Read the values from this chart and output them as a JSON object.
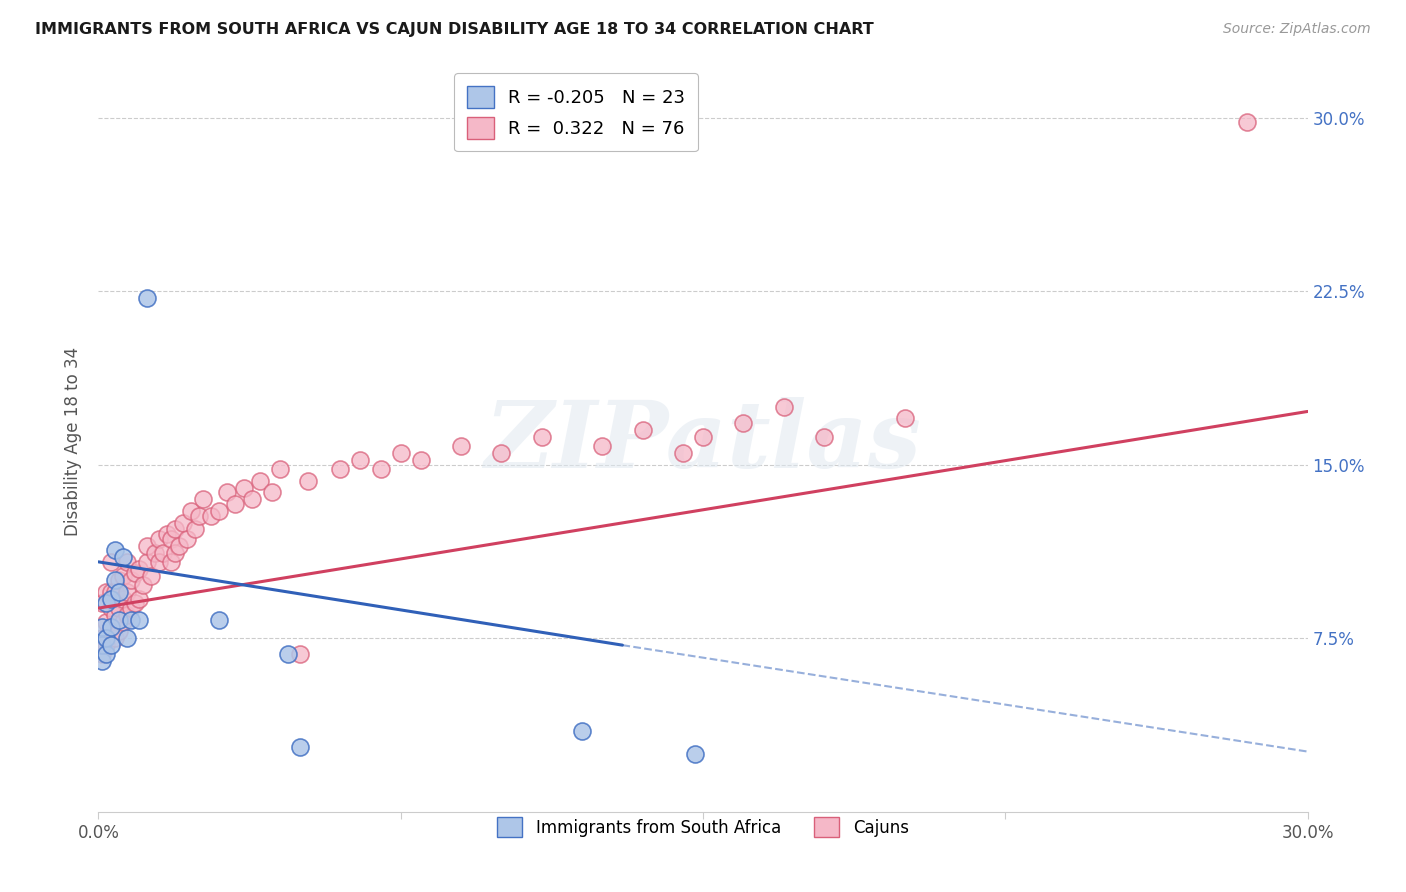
{
  "title": "IMMIGRANTS FROM SOUTH AFRICA VS CAJUN DISABILITY AGE 18 TO 34 CORRELATION CHART",
  "source": "Source: ZipAtlas.com",
  "ylabel": "Disability Age 18 to 34",
  "ytick_labels": [
    "7.5%",
    "15.0%",
    "22.5%",
    "30.0%"
  ],
  "ytick_values": [
    0.075,
    0.15,
    0.225,
    0.3
  ],
  "xmin": 0.0,
  "xmax": 0.3,
  "ymin": 0.0,
  "ymax": 0.32,
  "legend_r_blue": "-0.205",
  "legend_n_blue": "23",
  "legend_r_pink": " 0.322",
  "legend_n_pink": "76",
  "blue_fill": "#aec6e8",
  "pink_fill": "#f5b8c8",
  "blue_edge": "#4472c4",
  "pink_edge": "#d9607a",
  "blue_line": "#3060b8",
  "pink_line": "#d04060",
  "grid_color": "#cccccc",
  "watermark_text": "ZIPatlas",
  "blue_line_start_x": 0.0,
  "blue_line_start_y": 0.108,
  "blue_line_end_solid_x": 0.13,
  "blue_line_end_solid_y": 0.072,
  "blue_line_end_dash_x": 0.3,
  "blue_line_end_dash_y": 0.026,
  "pink_line_start_x": 0.0,
  "pink_line_start_y": 0.088,
  "pink_line_end_x": 0.3,
  "pink_line_end_y": 0.173,
  "blue_x": [
    0.001,
    0.001,
    0.001,
    0.002,
    0.002,
    0.002,
    0.003,
    0.003,
    0.003,
    0.004,
    0.004,
    0.005,
    0.005,
    0.006,
    0.007,
    0.008,
    0.01,
    0.012,
    0.03,
    0.047,
    0.05,
    0.12,
    0.148
  ],
  "blue_y": [
    0.065,
    0.072,
    0.08,
    0.068,
    0.075,
    0.09,
    0.072,
    0.08,
    0.092,
    0.1,
    0.113,
    0.083,
    0.095,
    0.11,
    0.075,
    0.083,
    0.083,
    0.222,
    0.083,
    0.068,
    0.028,
    0.035,
    0.025
  ],
  "pink_x": [
    0.001,
    0.001,
    0.001,
    0.002,
    0.002,
    0.002,
    0.003,
    0.003,
    0.003,
    0.003,
    0.004,
    0.004,
    0.004,
    0.005,
    0.005,
    0.005,
    0.006,
    0.006,
    0.006,
    0.007,
    0.007,
    0.007,
    0.008,
    0.008,
    0.009,
    0.009,
    0.01,
    0.01,
    0.011,
    0.012,
    0.012,
    0.013,
    0.014,
    0.015,
    0.015,
    0.016,
    0.017,
    0.018,
    0.018,
    0.019,
    0.019,
    0.02,
    0.021,
    0.022,
    0.023,
    0.024,
    0.025,
    0.026,
    0.028,
    0.03,
    0.032,
    0.034,
    0.036,
    0.038,
    0.04,
    0.043,
    0.045,
    0.05,
    0.052,
    0.06,
    0.065,
    0.07,
    0.075,
    0.08,
    0.09,
    0.1,
    0.11,
    0.125,
    0.135,
    0.145,
    0.15,
    0.16,
    0.17,
    0.18,
    0.2,
    0.285
  ],
  "pink_y": [
    0.068,
    0.075,
    0.09,
    0.072,
    0.082,
    0.095,
    0.08,
    0.088,
    0.095,
    0.108,
    0.075,
    0.085,
    0.095,
    0.078,
    0.088,
    0.1,
    0.082,
    0.092,
    0.102,
    0.085,
    0.095,
    0.108,
    0.088,
    0.1,
    0.09,
    0.103,
    0.092,
    0.105,
    0.098,
    0.108,
    0.115,
    0.102,
    0.112,
    0.108,
    0.118,
    0.112,
    0.12,
    0.108,
    0.118,
    0.112,
    0.122,
    0.115,
    0.125,
    0.118,
    0.13,
    0.122,
    0.128,
    0.135,
    0.128,
    0.13,
    0.138,
    0.133,
    0.14,
    0.135,
    0.143,
    0.138,
    0.148,
    0.068,
    0.143,
    0.148,
    0.152,
    0.148,
    0.155,
    0.152,
    0.158,
    0.155,
    0.162,
    0.158,
    0.165,
    0.155,
    0.162,
    0.168,
    0.175,
    0.162,
    0.17,
    0.298
  ]
}
